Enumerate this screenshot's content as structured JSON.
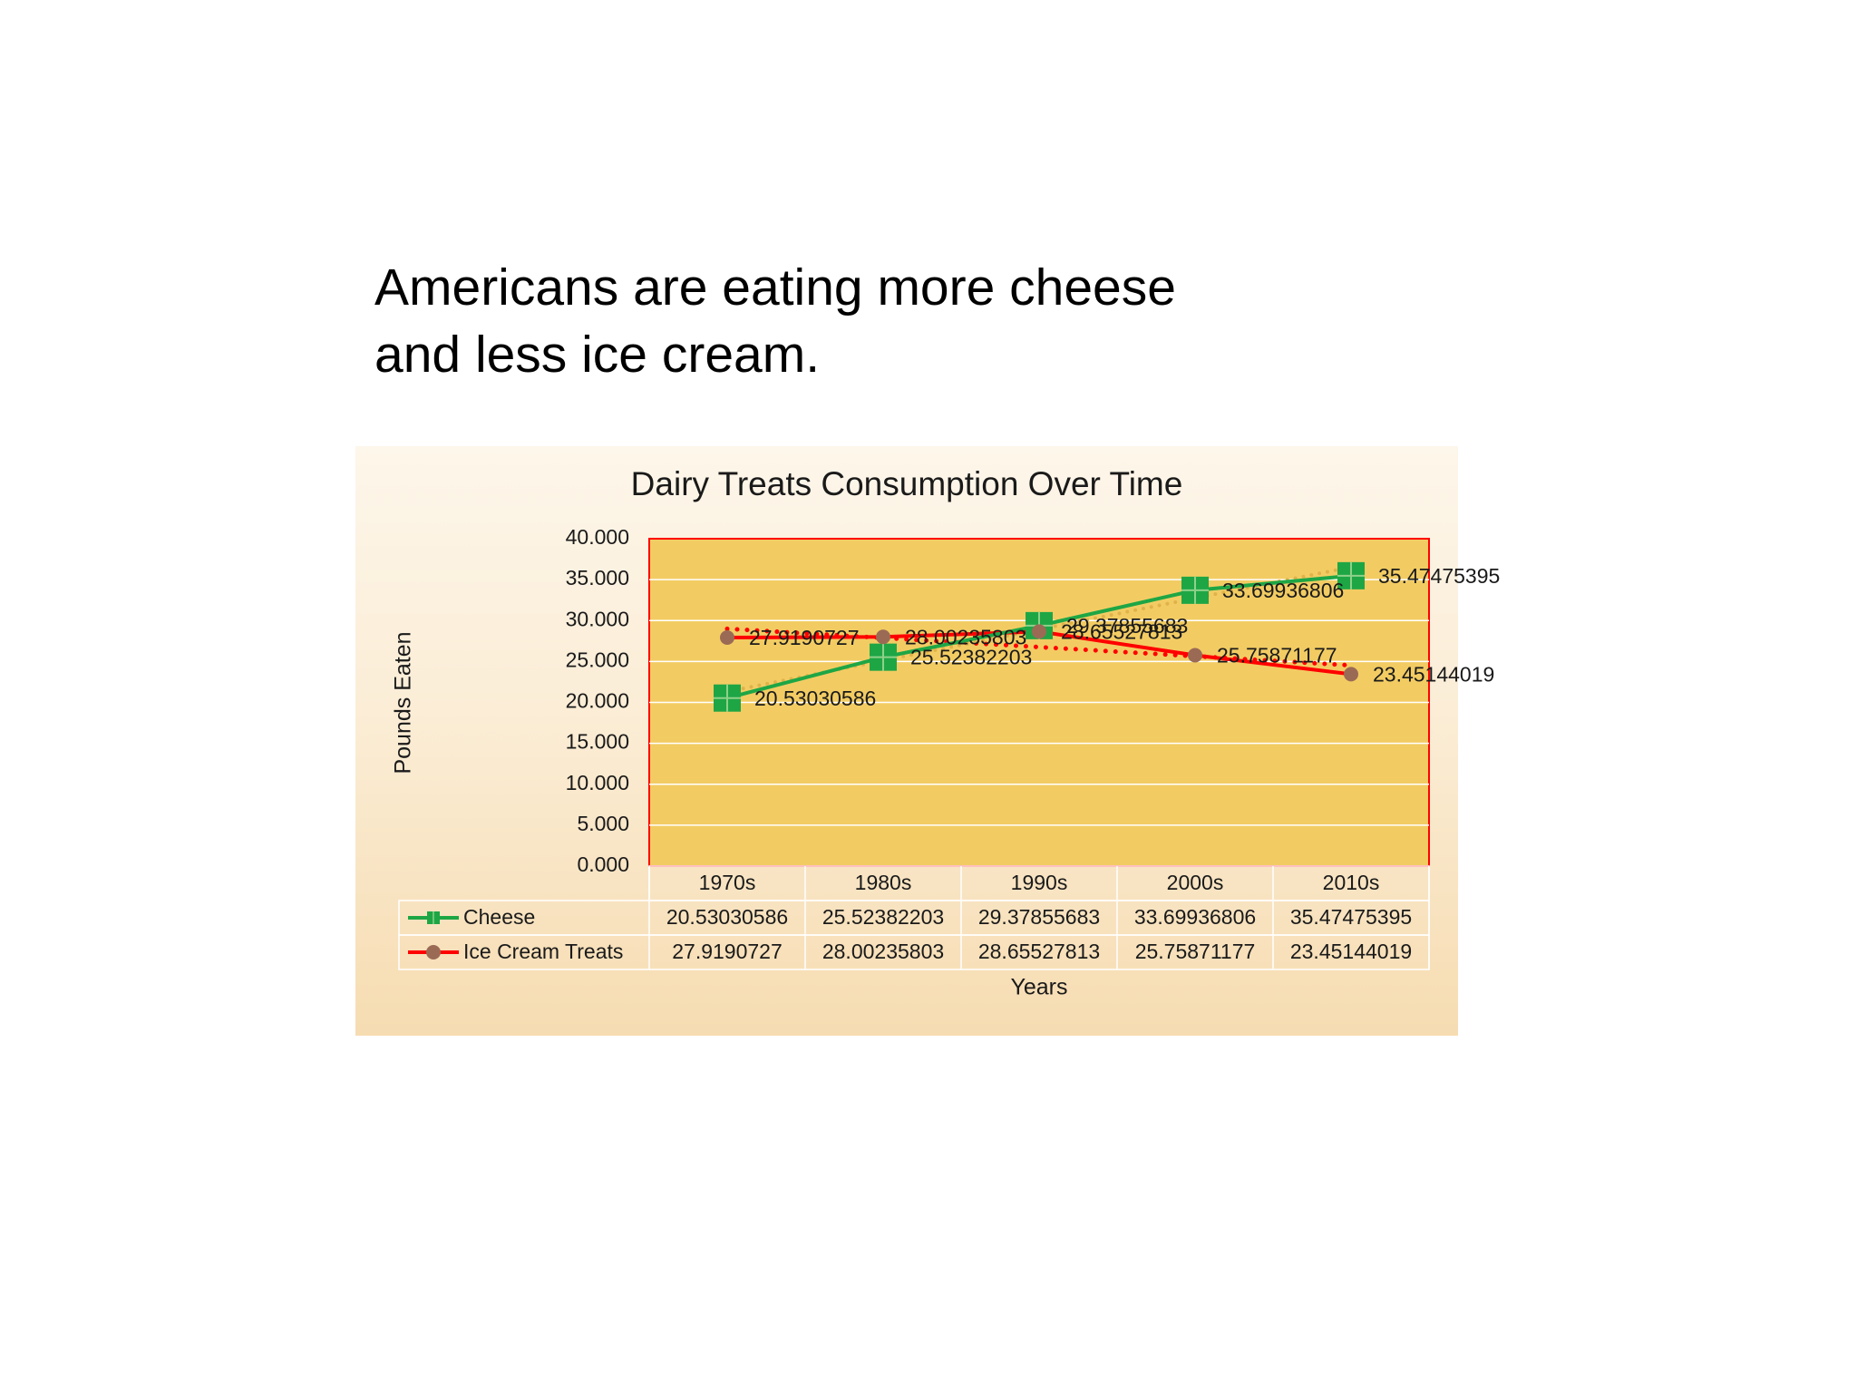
{
  "slide": {
    "headline_line1": "Americans are eating more cheese",
    "headline_line2": "and less ice cream."
  },
  "colors": {
    "plot_fill": "#f2cc63",
    "plot_border": "#ff0000",
    "gridline": "#ffffff",
    "cheese": "#1ea645",
    "ice_cream": "#ff0000",
    "ice_cream_marker": "#9b6a55",
    "cheese_trend": "#e0b24a",
    "ice_cream_trend": "#ff0000"
  },
  "chart_data": {
    "type": "line",
    "title": "Dairy Treats Consumption Over Time",
    "xlabel": "Years",
    "ylabel": "Pounds Eaten",
    "categories": [
      "1970s",
      "1980s",
      "1990s",
      "2000s",
      "2010s"
    ],
    "ylim": [
      0,
      40
    ],
    "ytick_labels": [
      "0.000",
      "5.000",
      "10.000",
      "15.000",
      "20.000",
      "25.000",
      "30.000",
      "35.000",
      "40.000"
    ],
    "grid": true,
    "trendlines": "dotted linear, one per series",
    "legend": "data table below plot",
    "series": [
      {
        "name": "Cheese",
        "values": [
          20.53030586,
          25.52382203,
          29.37855683,
          33.69936806,
          35.47475395
        ],
        "labels": [
          "20.53030586",
          "25.52382203",
          "29.37855683",
          "33.69936806",
          "35.47475395"
        ],
        "marker": "square"
      },
      {
        "name": "Ice Cream Treats",
        "values": [
          27.9190727,
          28.00235803,
          28.65527813,
          25.75871177,
          23.45144019
        ],
        "labels": [
          "27.9190727",
          "28.00235803",
          "28.65527813",
          "25.75871177",
          "23.45144019"
        ],
        "marker": "circle"
      }
    ]
  }
}
